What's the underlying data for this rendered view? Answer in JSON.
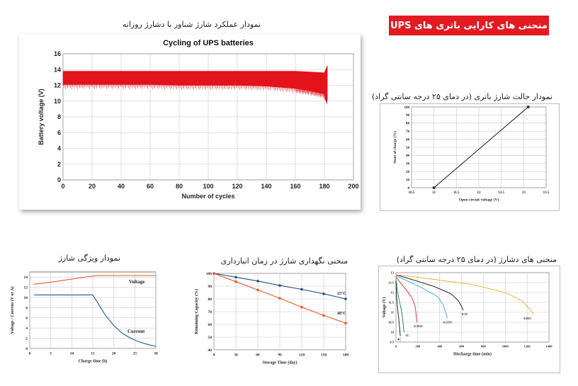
{
  "banner": {
    "title": "منحنی های کارایی باتری های UPS"
  },
  "charts_text": {
    "cycling_caption": "نمودار عملکرد شارژ شناور با دشارژ روزانه",
    "soc_caption": "نمودار حالت شارژ باتری (در دمای ۲۵ درجه سانتی گراد)",
    "charge_caption": "نمودار ویژگی شارژ",
    "storage_caption": "منحنی نگهداری شارژ در زمان انبارداری",
    "discharge_caption": "منحنی های دشارژ (در دمای ۲۵ درجه سانتی گراد)"
  },
  "chart_data": [
    {
      "id": "cycling",
      "type": "area",
      "title": "Cycling of UPS batteries",
      "xlabel": "Number of cycles",
      "ylabel": "Battery voltage (V)",
      "xlim": [
        0,
        200
      ],
      "ylim": [
        0,
        16
      ],
      "xticks": [
        0,
        20,
        40,
        60,
        80,
        100,
        120,
        140,
        160,
        180,
        200
      ],
      "yticks": [
        0,
        2,
        4,
        6,
        8,
        10,
        12,
        14,
        16
      ],
      "grid": true,
      "color": "#e3121b",
      "x": [
        0,
        20,
        40,
        60,
        80,
        100,
        120,
        140,
        160,
        170,
        180,
        182
      ],
      "upper": [
        13.8,
        13.8,
        13.8,
        13.8,
        13.8,
        13.8,
        13.8,
        13.8,
        13.8,
        13.7,
        13.6,
        14.5
      ],
      "lower": [
        12.1,
        12.1,
        12.1,
        12.1,
        12.0,
        12.0,
        12.0,
        11.9,
        11.6,
        11.3,
        10.9,
        10.1
      ]
    },
    {
      "id": "soc",
      "type": "line",
      "title": "",
      "xlabel": "Open circuit voltage (V)",
      "ylabel": "State of charge (%)",
      "xlim": [
        10.5,
        13.5
      ],
      "ylim": [
        0,
        100
      ],
      "xticks": [
        "10.5",
        "11",
        "11.5",
        "12",
        "12.5",
        "13",
        "13.5"
      ],
      "yticks": [
        0,
        10,
        20,
        30,
        40,
        50,
        60,
        70,
        80,
        90,
        100
      ],
      "grid": true,
      "color": "#111111",
      "x": [
        11.0,
        13.1
      ],
      "y": [
        0,
        100
      ]
    },
    {
      "id": "charge",
      "type": "line",
      "title": "",
      "xlabel": "Charge time (h)",
      "ylabel": "Voltage / Current (V or A)",
      "xlim": [
        0,
        30
      ],
      "ylim": [
        0,
        15
      ],
      "xticks": [
        0,
        5,
        10,
        15,
        20,
        25,
        30
      ],
      "yticks": [
        0,
        2,
        4,
        6,
        8,
        10,
        12,
        14
      ],
      "grid": true,
      "series": [
        {
          "name": "Voltage",
          "color": "#e8582b",
          "x": [
            1,
            5,
            10,
            14,
            16,
            20,
            25,
            30
          ],
          "y": [
            12.6,
            13.0,
            13.6,
            14.1,
            14.3,
            14.3,
            14.3,
            14.3
          ]
        },
        {
          "name": "Current",
          "color": "#1f5d8a",
          "x": [
            1,
            5,
            10,
            15,
            16,
            18,
            20,
            22,
            24,
            26,
            28,
            30
          ],
          "y": [
            10.5,
            10.5,
            10.5,
            10.5,
            9.2,
            6.5,
            4.5,
            3.0,
            2.0,
            1.3,
            0.8,
            0.4
          ]
        }
      ]
    },
    {
      "id": "storage",
      "type": "line",
      "title": "",
      "xlabel": "Storage Time (day)",
      "ylabel": "Remaining Capacity (%)",
      "xlim": [
        0,
        180
      ],
      "ylim": [
        40,
        100
      ],
      "xticks": [
        0,
        30,
        60,
        90,
        120,
        150,
        180
      ],
      "yticks": [
        40,
        50,
        60,
        70,
        80,
        90,
        100
      ],
      "grid": true,
      "series": [
        {
          "name": "25°C",
          "color": "#1f4e8c",
          "x": [
            0,
            30,
            60,
            90,
            120,
            150,
            180
          ],
          "y": [
            100,
            97,
            94,
            90.5,
            87.5,
            84,
            80
          ]
        },
        {
          "name": "40°C",
          "color": "#e8582b",
          "x": [
            0,
            30,
            60,
            90,
            120,
            150,
            180
          ],
          "y": [
            100,
            93.5,
            87,
            80.5,
            73.5,
            67,
            61
          ]
        }
      ]
    },
    {
      "id": "discharge",
      "type": "line",
      "title": "",
      "xlabel": "Discharge time (min)",
      "ylabel": "Voltage (V)",
      "xlim": [
        0,
        1400
      ],
      "ylim": [
        9.5,
        13
      ],
      "xticks": [
        0,
        200,
        400,
        600,
        800,
        1000,
        1200,
        1400
      ],
      "yticks": [
        "9.5",
        "10",
        "10.5",
        "11",
        "11.5",
        "12",
        "12.5",
        "13"
      ],
      "grid": true,
      "series": [
        {
          "name": "4C",
          "color": "#111111",
          "x": [
            0,
            5,
            15,
            25,
            32,
            36,
            40
          ],
          "y": [
            12.6,
            11.8,
            11.2,
            10.7,
            10.3,
            10.0,
            9.8
          ]
        },
        {
          "name": "1C",
          "color": "#1c7a4b",
          "x": [
            0,
            10,
            30,
            50,
            60,
            68,
            74
          ],
          "y": [
            12.7,
            12.2,
            11.6,
            11.1,
            10.7,
            10.3,
            10.0
          ]
        },
        {
          "name": "0.333C",
          "color": "#d6262d",
          "x": [
            0,
            40,
            100,
            150,
            175,
            185,
            190
          ],
          "y": [
            12.8,
            12.5,
            12.1,
            11.7,
            11.3,
            10.9,
            10.5
          ]
        },
        {
          "name": "0.125C",
          "color": "#35a9dd",
          "x": [
            0,
            100,
            250,
            380,
            430,
            455,
            470
          ],
          "y": [
            12.85,
            12.6,
            12.2,
            11.8,
            11.4,
            11.0,
            10.7
          ]
        },
        {
          "name": "0.1C",
          "color": "#111111",
          "x": [
            0,
            150,
            350,
            500,
            570,
            600,
            615
          ],
          "y": [
            12.9,
            12.65,
            12.3,
            11.95,
            11.6,
            11.3,
            11.1
          ]
        },
        {
          "name": "0.05C",
          "color": "#f0a81c",
          "x": [
            0,
            300,
            700,
            1000,
            1150,
            1220,
            1260
          ],
          "y": [
            12.9,
            12.7,
            12.4,
            12.0,
            11.6,
            11.2,
            10.9
          ]
        }
      ]
    }
  ]
}
